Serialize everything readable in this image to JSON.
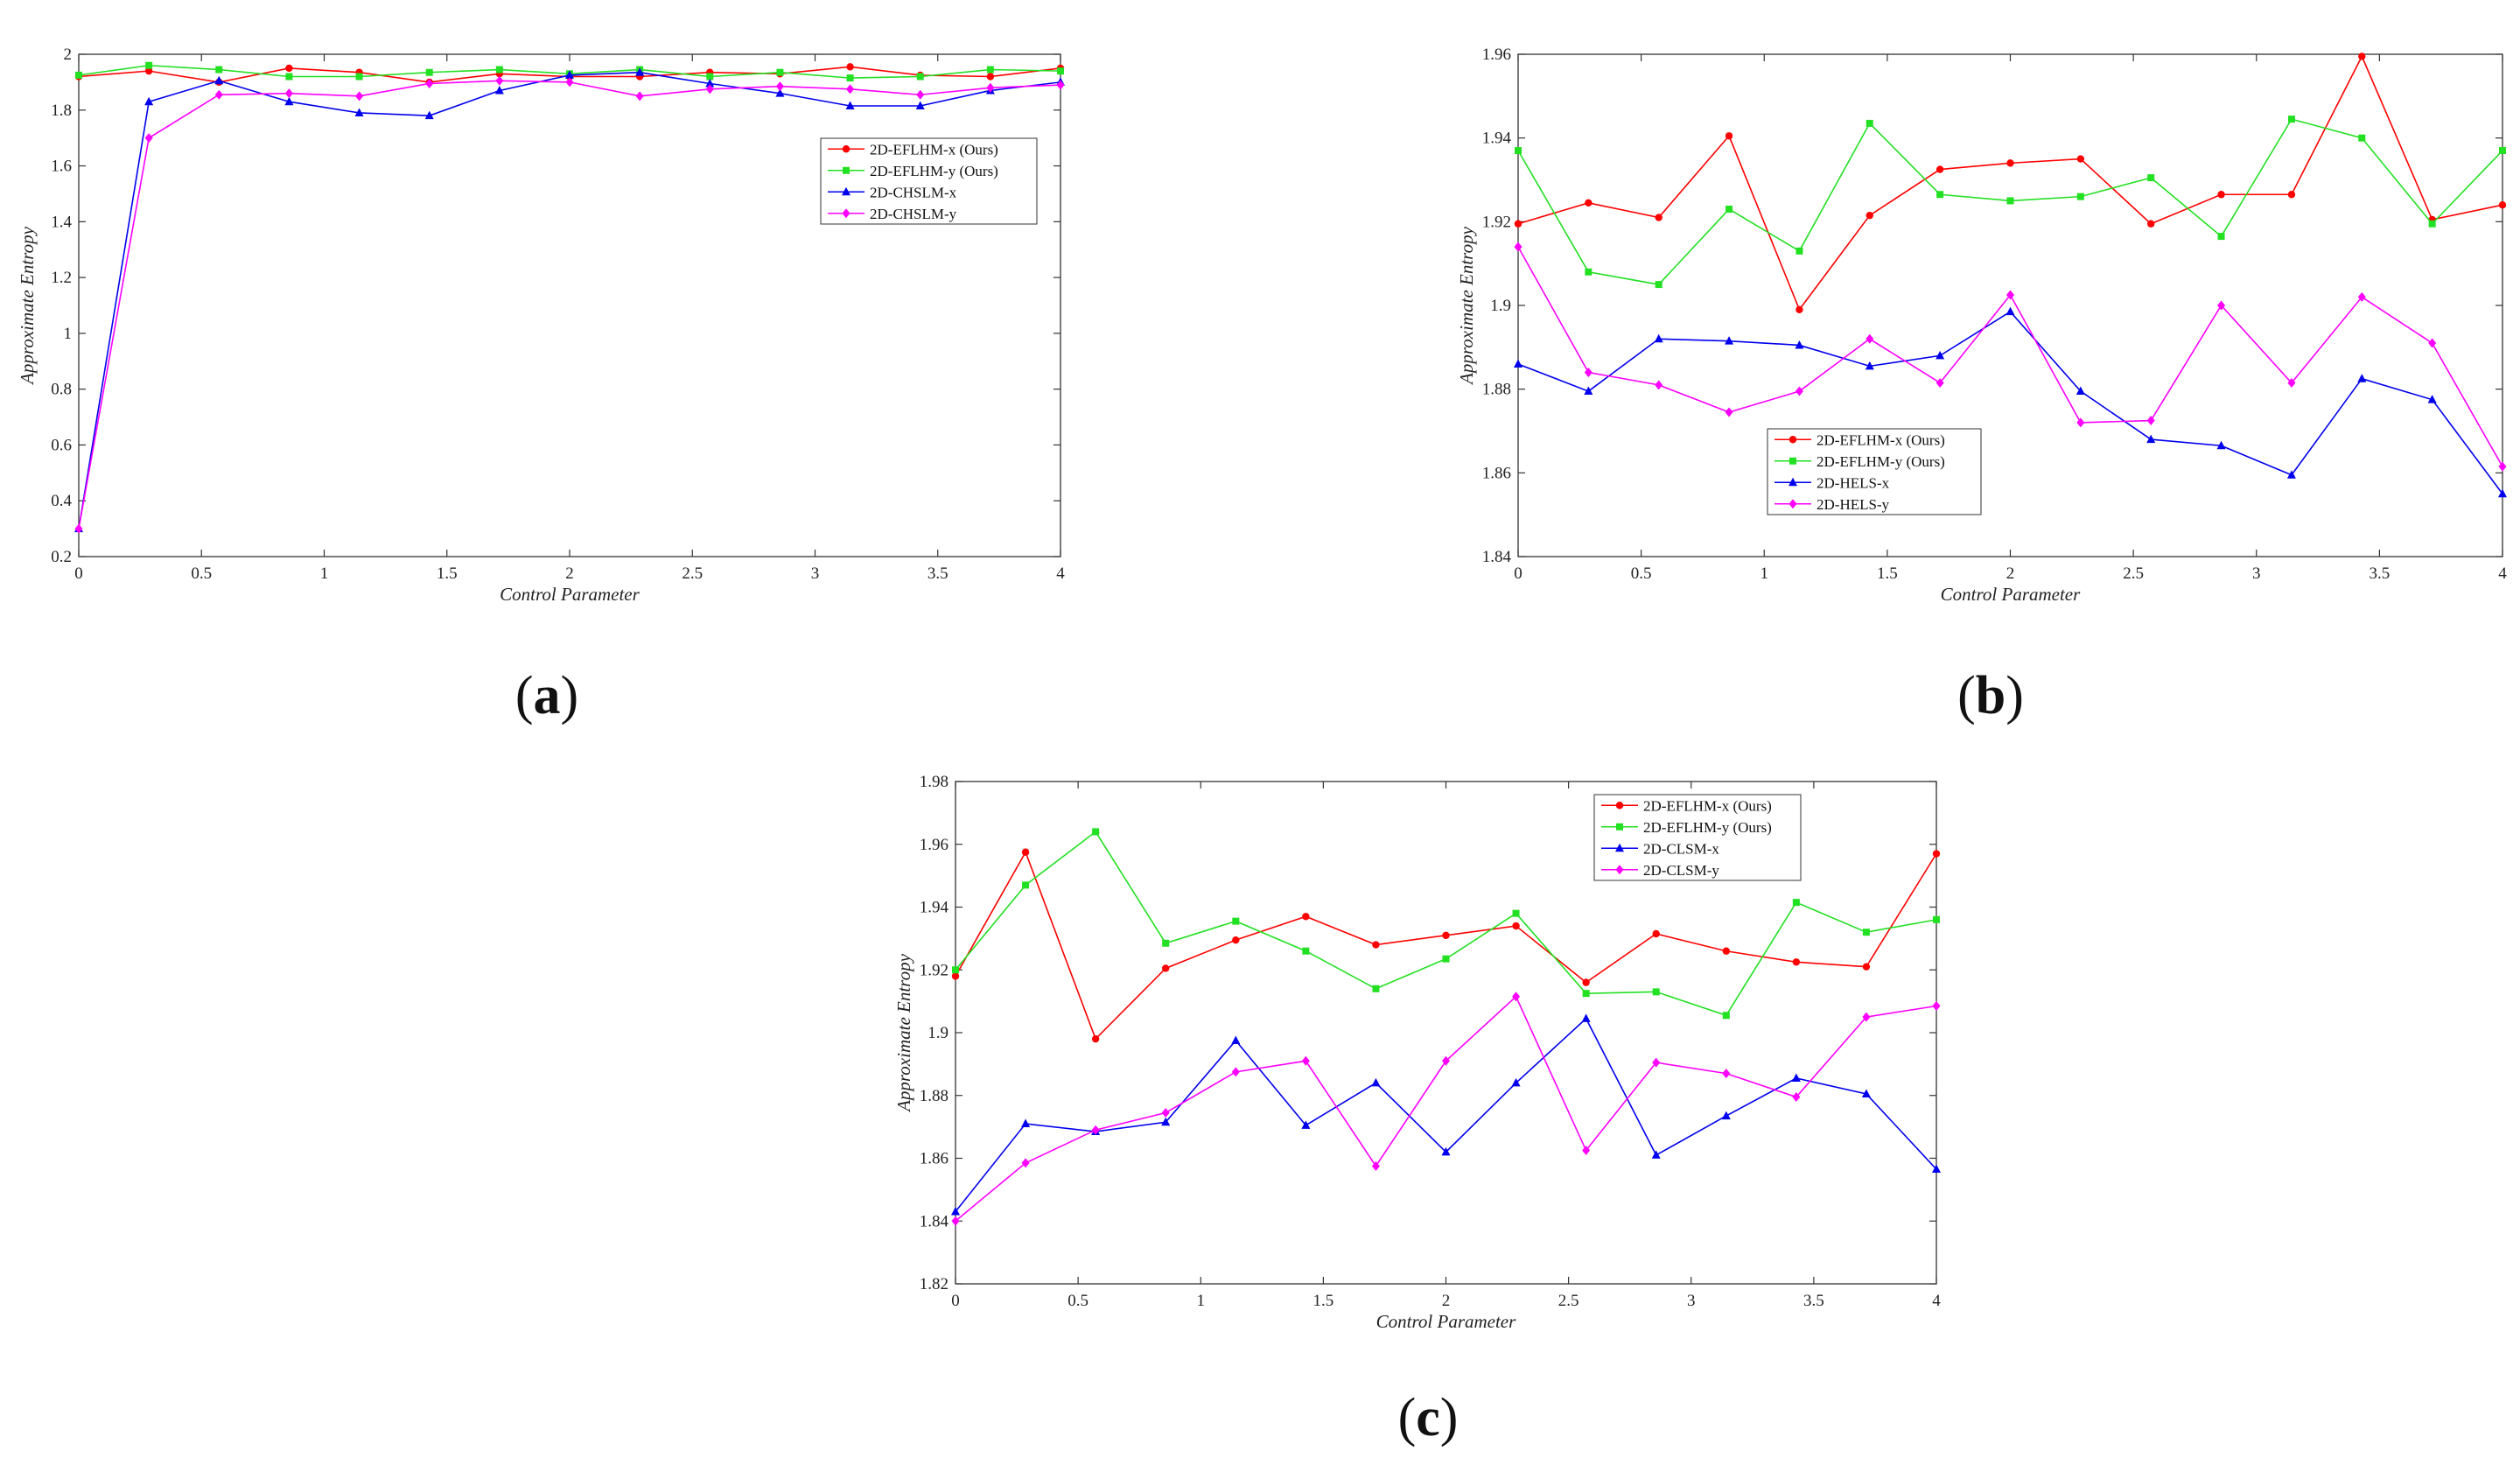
{
  "colors": {
    "red": "#ff0000",
    "green": "#22e022",
    "blue": "#0000ee",
    "magenta": "#ff00ff"
  },
  "chart_data": [
    {
      "type": "line",
      "caption": "a",
      "xlabel": "Control Parameter",
      "ylabel": "Approximate Entropy",
      "xlim": [
        0,
        4
      ],
      "ylim": [
        0.2,
        2
      ],
      "xticks": [
        0,
        0.5,
        1,
        1.5,
        2,
        2.5,
        3,
        3.5,
        4
      ],
      "xtick_labels": [
        "0",
        "0.5",
        "1",
        "1.5",
        "2",
        "2.5",
        "3",
        "3.5",
        "4"
      ],
      "yticks": [
        0.2,
        0.4,
        0.6,
        0.8,
        1,
        1.2,
        1.4,
        1.6,
        1.8,
        2
      ],
      "ytick_labels": [
        "0.2",
        "0.4",
        "0.6",
        "0.8",
        "1",
        "1.2",
        "1.4",
        "1.6",
        "1.8",
        "2"
      ],
      "legend_position": "upper-right",
      "x": [
        0,
        0.2857,
        0.5714,
        0.8571,
        1.1429,
        1.4286,
        1.7143,
        2.0,
        2.2857,
        2.5714,
        2.8571,
        3.1429,
        3.4286,
        3.7143,
        4.0
      ],
      "series": [
        {
          "name": "2D-EFLHM-x (Ours)",
          "color": "red",
          "marker": "circle",
          "values": [
            1.92,
            1.94,
            1.9,
            1.95,
            1.935,
            1.9,
            1.93,
            1.92,
            1.92,
            1.935,
            1.93,
            1.955,
            1.925,
            1.92,
            1.95
          ]
        },
        {
          "name": "2D-EFLHM-y (Ours)",
          "color": "green",
          "marker": "square",
          "values": [
            1.925,
            1.96,
            1.945,
            1.92,
            1.92,
            1.935,
            1.945,
            1.93,
            1.945,
            1.92,
            1.935,
            1.915,
            1.92,
            1.945,
            1.94
          ]
        },
        {
          "name": "2D-CHSLM-x",
          "color": "blue",
          "marker": "triangle",
          "values": [
            0.3,
            1.83,
            1.905,
            1.83,
            1.79,
            1.78,
            1.87,
            1.925,
            1.935,
            1.895,
            1.86,
            1.815,
            1.815,
            1.87,
            1.9
          ]
        },
        {
          "name": "2D-CHSLM-y",
          "color": "magenta",
          "marker": "diamond",
          "values": [
            0.3,
            1.7,
            1.855,
            1.86,
            1.85,
            1.895,
            1.905,
            1.9,
            1.85,
            1.875,
            1.885,
            1.875,
            1.855,
            1.88,
            1.89
          ]
        }
      ]
    },
    {
      "type": "line",
      "caption": "b",
      "xlabel": "Control Parameter",
      "ylabel": "Approximate Entropy",
      "xlim": [
        0,
        4
      ],
      "ylim": [
        1.84,
        1.96
      ],
      "xticks": [
        0,
        0.5,
        1,
        1.5,
        2,
        2.5,
        3,
        3.5,
        4
      ],
      "xtick_labels": [
        "0",
        "0.5",
        "1",
        "1.5",
        "2",
        "2.5",
        "3",
        "3.5",
        "4"
      ],
      "yticks": [
        1.84,
        1.86,
        1.88,
        1.9,
        1.92,
        1.94,
        1.96
      ],
      "ytick_labels": [
        "1.84",
        "1.86",
        "1.88",
        "1.9",
        "1.92",
        "1.94",
        "1.96"
      ],
      "legend_position": "lower-left",
      "x": [
        0,
        0.2857,
        0.5714,
        0.8571,
        1.1429,
        1.4286,
        1.7143,
        2.0,
        2.2857,
        2.5714,
        2.8571,
        3.1429,
        3.4286,
        3.7143,
        4.0
      ],
      "series": [
        {
          "name": "2D-EFLHM-x (Ours)",
          "color": "red",
          "marker": "circle",
          "values": [
            1.9195,
            1.9245,
            1.921,
            1.9405,
            1.899,
            1.9215,
            1.9325,
            1.934,
            1.935,
            1.9195,
            1.9265,
            1.9265,
            1.9595,
            1.9205,
            1.924
          ]
        },
        {
          "name": "2D-EFLHM-y (Ours)",
          "color": "green",
          "marker": "square",
          "values": [
            1.937,
            1.908,
            1.905,
            1.923,
            1.913,
            1.9435,
            1.9265,
            1.925,
            1.926,
            1.9305,
            1.9165,
            1.9445,
            1.94,
            1.9195,
            1.937
          ]
        },
        {
          "name": "2D-HELS-x",
          "color": "blue",
          "marker": "triangle",
          "values": [
            1.886,
            1.8795,
            1.892,
            1.8915,
            1.8905,
            1.8855,
            1.888,
            1.8985,
            1.8795,
            1.868,
            1.8665,
            1.8595,
            1.8825,
            1.8775,
            1.855
          ]
        },
        {
          "name": "2D-HELS-y",
          "color": "magenta",
          "marker": "diamond",
          "values": [
            1.914,
            1.884,
            1.881,
            1.8745,
            1.8795,
            1.892,
            1.8815,
            1.9025,
            1.872,
            1.8725,
            1.9,
            1.8815,
            1.902,
            1.891,
            1.8615
          ]
        }
      ]
    },
    {
      "type": "line",
      "caption": "c",
      "xlabel": "Control Parameter",
      "ylabel": "Approximate Entropy",
      "xlim": [
        0,
        4
      ],
      "ylim": [
        1.82,
        1.98
      ],
      "xticks": [
        0,
        0.5,
        1,
        1.5,
        2,
        2.5,
        3,
        3.5,
        4
      ],
      "xtick_labels": [
        "0",
        "0.5",
        "1",
        "1.5",
        "2",
        "2.5",
        "3",
        "3.5",
        "4"
      ],
      "yticks": [
        1.82,
        1.84,
        1.86,
        1.88,
        1.9,
        1.92,
        1.94,
        1.96,
        1.98
      ],
      "ytick_labels": [
        "1.82",
        "1.84",
        "1.86",
        "1.88",
        "1.9",
        "1.92",
        "1.94",
        "1.96",
        "1.98"
      ],
      "legend_position": "upper-right",
      "x": [
        0,
        0.2857,
        0.5714,
        0.8571,
        1.1429,
        1.4286,
        1.7143,
        2.0,
        2.2857,
        2.5714,
        2.8571,
        3.1429,
        3.4286,
        3.7143,
        4.0
      ],
      "series": [
        {
          "name": "2D-EFLHM-x (Ours)",
          "color": "red",
          "marker": "circle",
          "values": [
            1.918,
            1.9575,
            1.898,
            1.9205,
            1.9295,
            1.937,
            1.928,
            1.931,
            1.934,
            1.916,
            1.9315,
            1.926,
            1.9225,
            1.921,
            1.957
          ]
        },
        {
          "name": "2D-EFLHM-y (Ours)",
          "color": "green",
          "marker": "square",
          "values": [
            1.92,
            1.947,
            1.964,
            1.9285,
            1.9355,
            1.926,
            1.914,
            1.9235,
            1.938,
            1.9125,
            1.913,
            1.9055,
            1.9415,
            1.932,
            1.936
          ]
        },
        {
          "name": "2D-CLSM-x",
          "color": "blue",
          "marker": "triangle",
          "values": [
            1.843,
            1.871,
            1.8685,
            1.8715,
            1.8975,
            1.8705,
            1.884,
            1.862,
            1.884,
            1.9045,
            1.861,
            1.8735,
            1.8855,
            1.8805,
            1.8565
          ]
        },
        {
          "name": "2D-CLSM-y",
          "color": "magenta",
          "marker": "diamond",
          "values": [
            1.84,
            1.8585,
            1.869,
            1.8745,
            1.8875,
            1.891,
            1.8575,
            1.891,
            1.9115,
            1.8625,
            1.8905,
            1.887,
            1.8795,
            1.905,
            1.9085
          ]
        }
      ]
    }
  ]
}
